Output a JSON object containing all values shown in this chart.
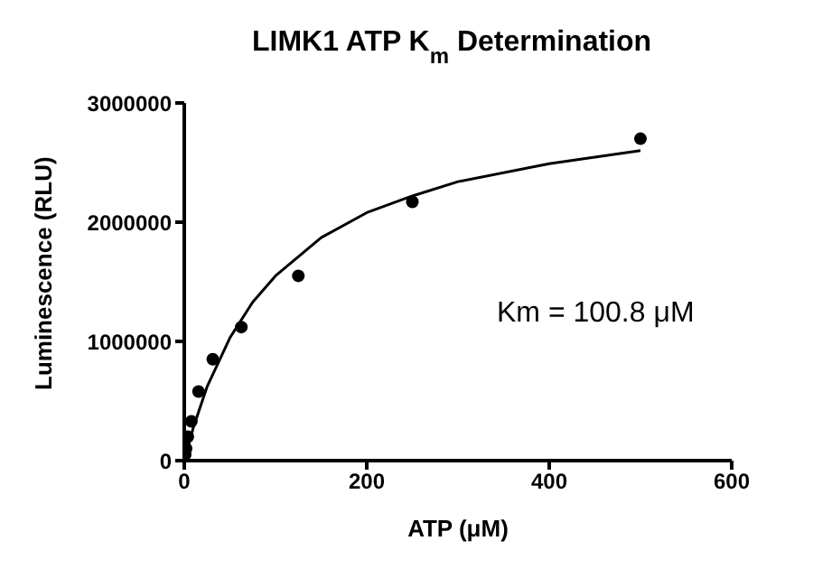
{
  "chart_data": {
    "type": "scatter",
    "title": "LIMK1 ATP K$_{m}$ Determination",
    "xlabel": "ATP (μM)",
    "ylabel": "Luminescence (RLU)",
    "annotations": [
      "Km = 100.8 μM"
    ],
    "xlim": [
      0,
      600
    ],
    "xticks": [
      0,
      200,
      400,
      600
    ],
    "ylim": [
      0,
      3000000
    ],
    "yticks": [
      0,
      1000000,
      2000000,
      3000000
    ],
    "marker": "circle",
    "series": [
      {
        "color": "#000000",
        "x": [
          1,
          2,
          3.9,
          7.8,
          15.6,
          31.25,
          62.5,
          125,
          250,
          500
        ],
        "values": [
          50000,
          100000,
          200000,
          330000,
          580000,
          850000,
          1120000,
          1550000,
          2170000,
          2700000
        ]
      },
      {
        "type": "line",
        "color": "#000000",
        "marker": "none",
        "line_style": "solid",
        "x": [
          0,
          10,
          25,
          50,
          75,
          100,
          150,
          200,
          250,
          300,
          400,
          500
        ],
        "values": [
          0,
          280000,
          620000,
          1030000,
          1330000,
          1550000,
          1870000,
          2080000,
          2220000,
          2340000,
          2490000,
          2600000
        ]
      }
    ]
  }
}
